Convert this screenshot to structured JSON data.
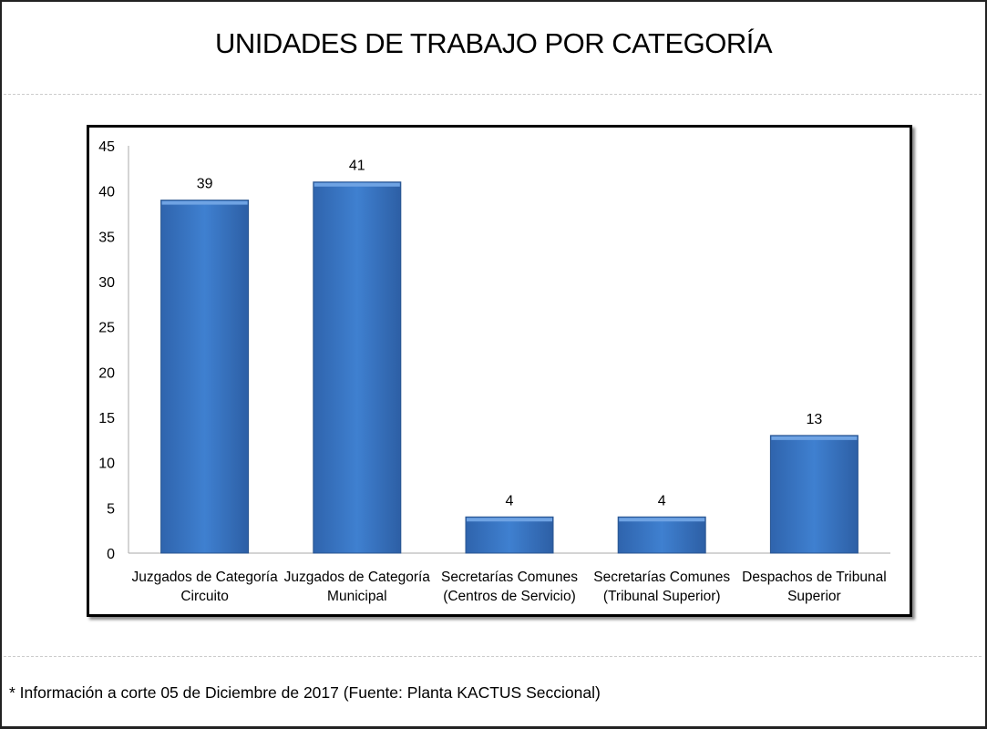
{
  "title": "UNIDADES DE TRABAJO POR CATEGORÍA",
  "footer": "* Información a corte 05 de Diciembre de 2017 (Fuente: Planta KACTUS Seccional)",
  "chart_data": {
    "type": "bar",
    "categories": [
      [
        "Juzgados de Categoría",
        "Circuito"
      ],
      [
        "Juzgados de Categoría",
        "Municipal"
      ],
      [
        "Secretarías Comunes",
        "(Centros de Servicio)"
      ],
      [
        "Secretarías Comunes",
        "(Tribunal Superior)"
      ],
      [
        "Despachos de Tribunal",
        "Superior"
      ]
    ],
    "values": [
      39,
      41,
      4,
      4,
      13
    ],
    "ylim": [
      0,
      45
    ],
    "yticks": [
      0,
      5,
      10,
      15,
      20,
      25,
      30,
      35,
      40,
      45
    ],
    "grid": false,
    "bar_color": "#3a78c8",
    "data_labels": true
  }
}
